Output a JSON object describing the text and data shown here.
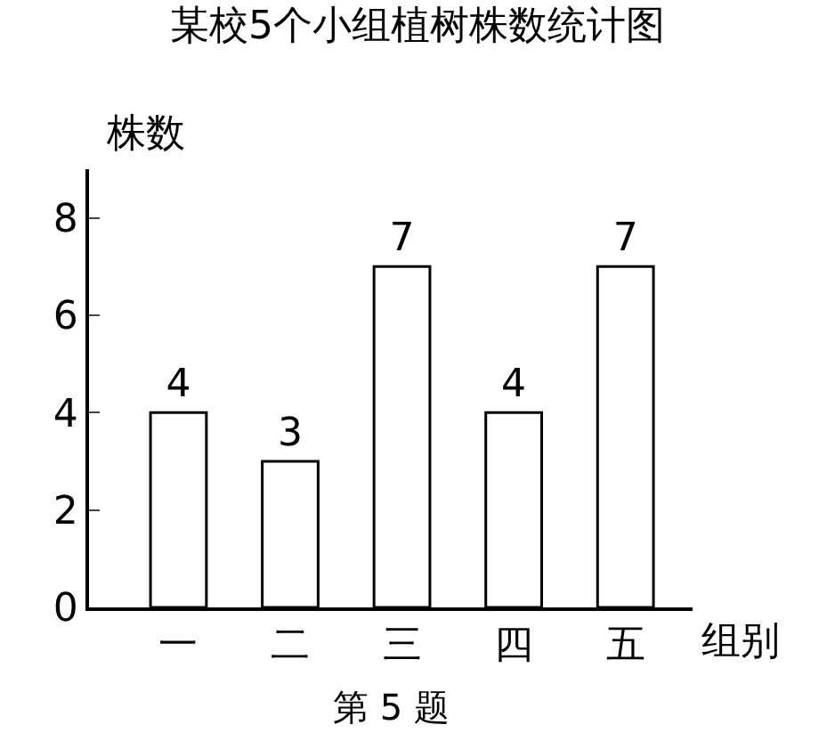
{
  "chart_data": {
    "type": "bar",
    "title": "某校5个小组植树株数统计图",
    "xlabel": "组别",
    "ylabel": "株数",
    "categories": [
      "一",
      "二",
      "三",
      "四",
      "五"
    ],
    "values": [
      4,
      3,
      7,
      4,
      7
    ],
    "color": "#ffffff",
    "ylim": [
      0,
      9
    ],
    "yticks": [
      0,
      2,
      4,
      6,
      8
    ],
    "data_labels": true,
    "annotations": [
      "第 5 题"
    ]
  }
}
